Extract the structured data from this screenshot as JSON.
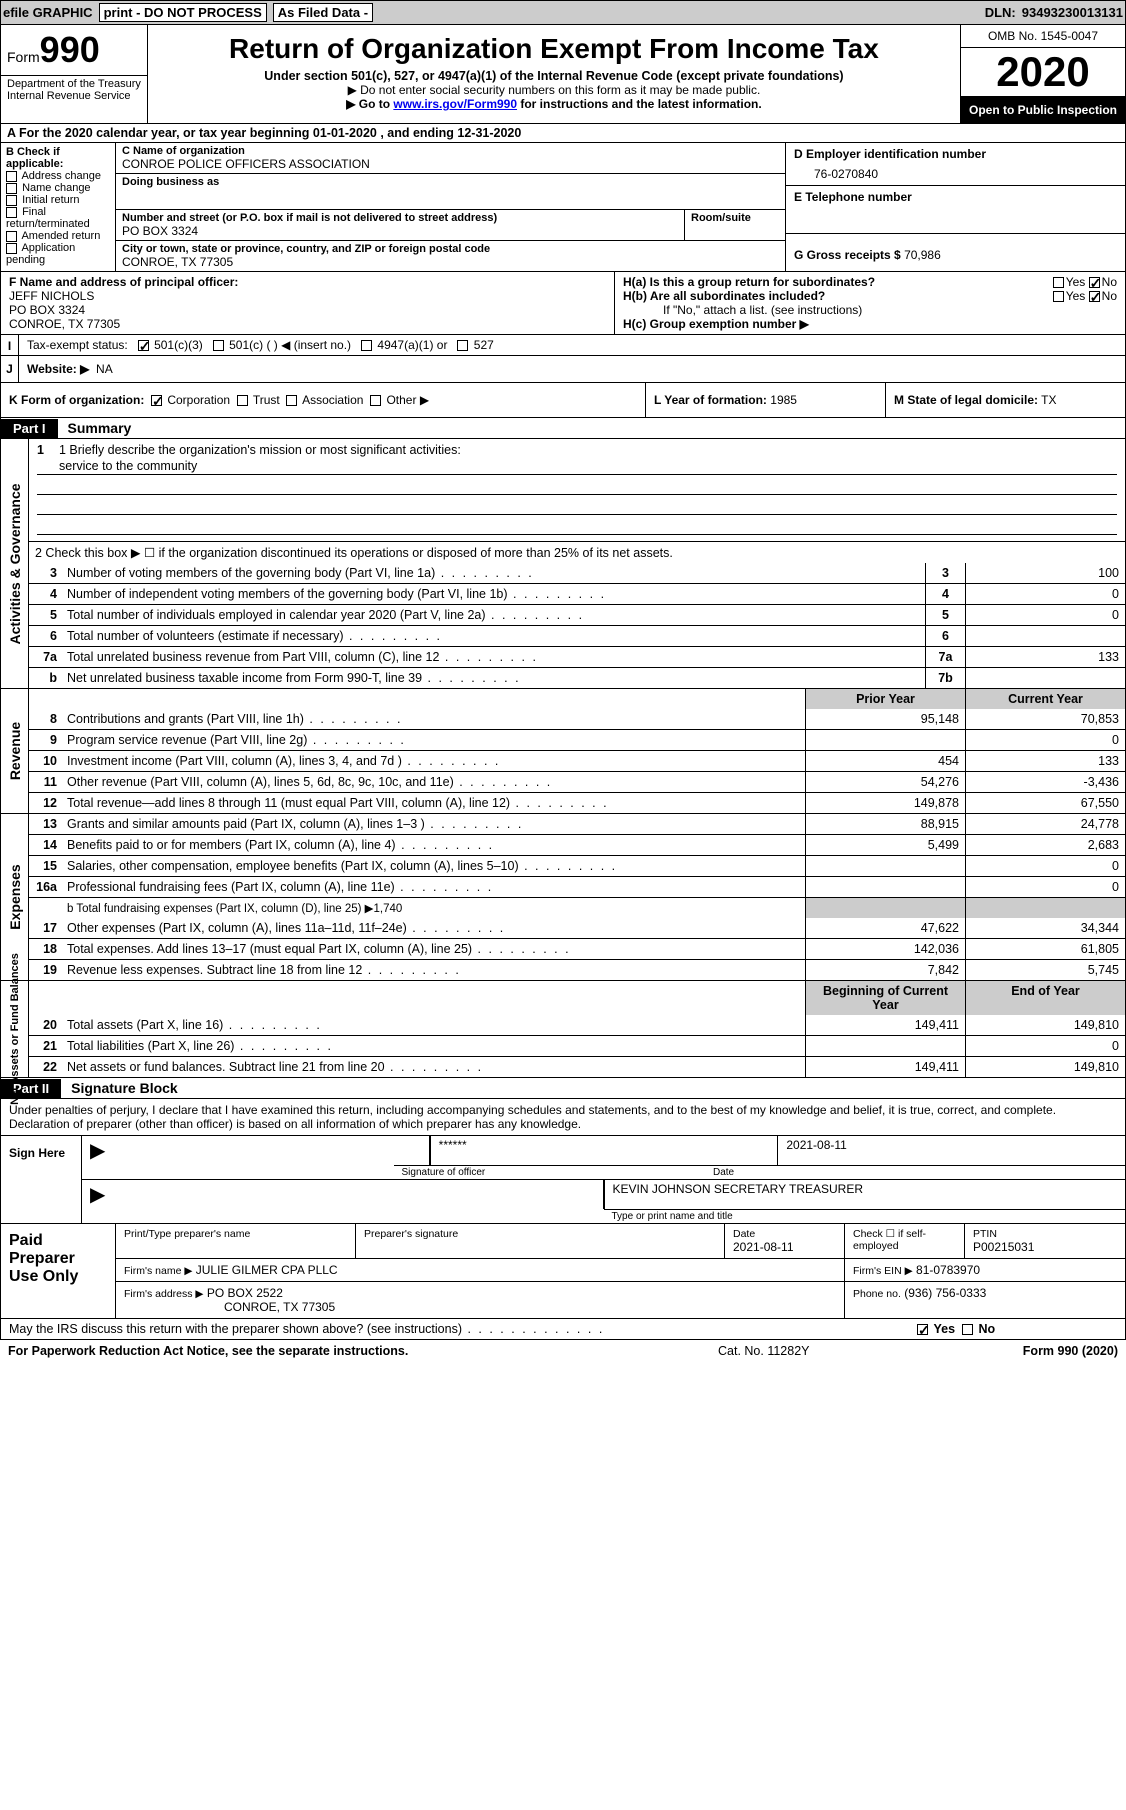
{
  "topbar": {
    "efile": "efile GRAPHIC",
    "print": "print - DO NOT PROCESS",
    "asfiled": "As Filed Data -",
    "dln_label": "DLN:",
    "dln": "93493230013131"
  },
  "header": {
    "form_word": "Form",
    "form_num": "990",
    "dept1": "Department of the Treasury",
    "dept2": "Internal Revenue Service",
    "title": "Return of Organization Exempt From Income Tax",
    "sub1": "Under section 501(c), 527, or 4947(a)(1) of the Internal Revenue Code (except private foundations)",
    "sub2": "▶ Do not enter social security numbers on this form as it may be made public.",
    "sub3_pre": "▶ Go to ",
    "sub3_link": "www.irs.gov/Form990",
    "sub3_post": " for instructions and the latest information.",
    "omb": "OMB No. 1545-0047",
    "year": "2020",
    "inspect": "Open to Public Inspection"
  },
  "row_a": "A  For the 2020 calendar year, or tax year beginning 01-01-2020   , and ending 12-31-2020",
  "box_b": {
    "heading": "B Check if applicable:",
    "items": [
      "Address change",
      "Name change",
      "Initial return",
      "Final return/terminated",
      "Amended return",
      "Application pending"
    ]
  },
  "box_c": {
    "name_lbl": "C Name of organization",
    "name": "CONROE POLICE OFFICERS ASSOCIATION",
    "dba_lbl": "Doing business as",
    "dba": "",
    "addr_lbl": "Number and street (or P.O. box if mail is not delivered to street address)",
    "room_lbl": "Room/suite",
    "addr": "PO BOX 3324",
    "city_lbl": "City or town, state or province, country, and ZIP or foreign postal code",
    "city": "CONROE, TX  77305"
  },
  "box_d": {
    "lbl": "D Employer identification number",
    "val": "76-0270840",
    "e_lbl": "E Telephone number",
    "e_val": "",
    "g_lbl": "G Gross receipts $",
    "g_val": "70,986"
  },
  "box_f": {
    "lbl": "F  Name and address of principal officer:",
    "name": "JEFF NICHOLS",
    "addr": "PO BOX 3324",
    "city": "CONROE, TX  77305"
  },
  "box_h": {
    "a_lbl": "H(a)  Is this a group return for subordinates?",
    "b_lbl": "H(b)  Are all subordinates included?",
    "note": "If \"No,\" attach a list. (see instructions)",
    "c_lbl": "H(c)  Group exemption number ▶",
    "yes": "Yes",
    "no": "No"
  },
  "row_i": {
    "lbl": "Tax-exempt status:",
    "opts": [
      "501(c)(3)",
      "501(c) (  ) ◀ (insert no.)",
      "4947(a)(1) or",
      "527"
    ]
  },
  "row_j": {
    "lbl": "Website: ▶",
    "val": "NA"
  },
  "row_k": {
    "lbl": "K Form of organization:",
    "opts": [
      "Corporation",
      "Trust",
      "Association",
      "Other ▶"
    ],
    "l_lbl": "L Year of formation:",
    "l_val": "1985",
    "m_lbl": "M State of legal domicile:",
    "m_val": "TX"
  },
  "part1": {
    "tag": "Part I",
    "title": "Summary"
  },
  "gov": {
    "label": "Activities & Governance",
    "l1_lbl": "1 Briefly describe the organization's mission or most significant activities:",
    "l1_val": "service to the community",
    "l2": "2  Check this box ▶ ☐  if the organization discontinued its operations or disposed of more than 25% of its net assets.",
    "rows": [
      {
        "n": "3",
        "d": "Number of voting members of the governing body (Part VI, line 1a)",
        "c": "3",
        "v": "100"
      },
      {
        "n": "4",
        "d": "Number of independent voting members of the governing body (Part VI, line 1b)",
        "c": "4",
        "v": "0"
      },
      {
        "n": "5",
        "d": "Total number of individuals employed in calendar year 2020 (Part V, line 2a)",
        "c": "5",
        "v": "0"
      },
      {
        "n": "6",
        "d": "Total number of volunteers (estimate if necessary)",
        "c": "6",
        "v": ""
      },
      {
        "n": "7a",
        "d": "Total unrelated business revenue from Part VIII, column (C), line 12",
        "c": "7a",
        "v": "133"
      },
      {
        "n": "b",
        "d": "Net unrelated business taxable income from Form 990-T, line 39",
        "c": "7b",
        "v": ""
      }
    ]
  },
  "rev": {
    "label": "Revenue",
    "hdr_prior": "Prior Year",
    "hdr_curr": "Current Year",
    "rows": [
      {
        "n": "8",
        "d": "Contributions and grants (Part VIII, line 1h)",
        "p": "95,148",
        "c": "70,853"
      },
      {
        "n": "9",
        "d": "Program service revenue (Part VIII, line 2g)",
        "p": "",
        "c": "0"
      },
      {
        "n": "10",
        "d": "Investment income (Part VIII, column (A), lines 3, 4, and 7d )",
        "p": "454",
        "c": "133"
      },
      {
        "n": "11",
        "d": "Other revenue (Part VIII, column (A), lines 5, 6d, 8c, 9c, 10c, and 11e)",
        "p": "54,276",
        "c": "-3,436"
      },
      {
        "n": "12",
        "d": "Total revenue—add lines 8 through 11 (must equal Part VIII, column (A), line 12)",
        "p": "149,878",
        "c": "67,550"
      }
    ]
  },
  "exp": {
    "label": "Expenses",
    "rows": [
      {
        "n": "13",
        "d": "Grants and similar amounts paid (Part IX, column (A), lines 1–3 )",
        "p": "88,915",
        "c": "24,778"
      },
      {
        "n": "14",
        "d": "Benefits paid to or for members (Part IX, column (A), line 4)",
        "p": "5,499",
        "c": "2,683"
      },
      {
        "n": "15",
        "d": "Salaries, other compensation, employee benefits (Part IX, column (A), lines 5–10)",
        "p": "",
        "c": "0"
      },
      {
        "n": "16a",
        "d": "Professional fundraising fees (Part IX, column (A), line 11e)",
        "p": "",
        "c": "0"
      }
    ],
    "l16b": "b  Total fundraising expenses (Part IX, column (D), line 25) ▶1,740",
    "rows2": [
      {
        "n": "17",
        "d": "Other expenses (Part IX, column (A), lines 11a–11d, 11f–24e)",
        "p": "47,622",
        "c": "34,344"
      },
      {
        "n": "18",
        "d": "Total expenses. Add lines 13–17 (must equal Part IX, column (A), line 25)",
        "p": "142,036",
        "c": "61,805"
      },
      {
        "n": "19",
        "d": "Revenue less expenses. Subtract line 18 from line 12",
        "p": "7,842",
        "c": "5,745"
      }
    ]
  },
  "net": {
    "label": "Net Assets or Fund Balances",
    "hdr_beg": "Beginning of Current Year",
    "hdr_end": "End of Year",
    "rows": [
      {
        "n": "20",
        "d": "Total assets (Part X, line 16)",
        "p": "149,411",
        "c": "149,810"
      },
      {
        "n": "21",
        "d": "Total liabilities (Part X, line 26)",
        "p": "",
        "c": "0"
      },
      {
        "n": "22",
        "d": "Net assets or fund balances. Subtract line 21 from line 20",
        "p": "149,411",
        "c": "149,810"
      }
    ]
  },
  "part2": {
    "tag": "Part II",
    "title": "Signature Block"
  },
  "sig": {
    "decl": "Under penalties of perjury, I declare that I have examined this return, including accompanying schedules and statements, and to the best of my knowledge and belief, it is true, correct, and complete. Declaration of preparer (other than officer) is based on all information of which preparer has any knowledge.",
    "sign_here": "Sign Here",
    "stars": "******",
    "sig_of": "Signature of officer",
    "date_lbl": "Date",
    "date": "2021-08-11",
    "name": "KEVIN JOHNSON SECRETARY TREASURER",
    "name_lbl": "Type or print name and title"
  },
  "paid": {
    "lbl": "Paid Preparer Use Only",
    "h1": "Print/Type preparer's name",
    "h2": "Preparer's signature",
    "h3_lbl": "Date",
    "h3": "2021-08-11",
    "h4": "Check ☐ if self-employed",
    "h5_lbl": "PTIN",
    "h5": "P00215031",
    "firm_lbl": "Firm's name  ▶",
    "firm": "JULIE GILMER CPA PLLC",
    "ein_lbl": "Firm's EIN ▶",
    "ein": "81-0783970",
    "addr_lbl": "Firm's address ▶",
    "addr": "PO BOX 2522",
    "city": "CONROE, TX  77305",
    "phone_lbl": "Phone no.",
    "phone": "(936) 756-0333"
  },
  "irs_q": {
    "q": "May the IRS discuss this return with the preparer shown above? (see instructions)",
    "yes": "Yes",
    "no": "No"
  },
  "footer": {
    "l": "For Paperwork Reduction Act Notice, see the separate instructions.",
    "c": "Cat. No. 11282Y",
    "r": "Form 990 (2020)"
  }
}
